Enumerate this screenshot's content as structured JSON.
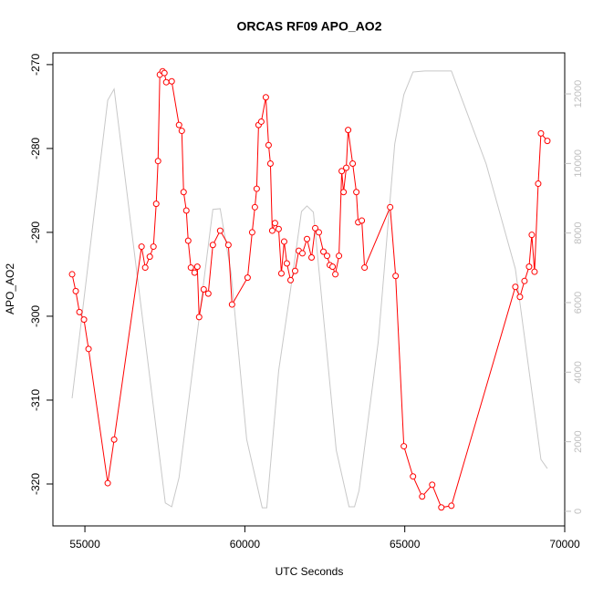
{
  "chart_data": {
    "type": "line",
    "title": "ORCAS RF09 APO_AO2",
    "x_label": "UTC Seconds",
    "y_label": "APO_AO2",
    "xlim": [
      54000,
      70000
    ],
    "xticks": [
      55000,
      60000,
      65000,
      70000
    ],
    "ylim": [
      -325,
      -268.6
    ],
    "yticks": [
      -270,
      -280,
      -290,
      -300,
      -310,
      -320
    ],
    "y2lim": [
      -420,
      13180
    ],
    "y2ticks": [
      0,
      2000,
      4000,
      6000,
      8000,
      10000,
      12000
    ],
    "y2_color": "#bebebe",
    "series": [
      {
        "color": "#ff0000",
        "markers": true,
        "x": [
          54600,
          54714,
          54829,
          54971,
          55114,
          55714,
          55914,
          56771,
          56886,
          57029,
          57143,
          57229,
          57286,
          57343,
          57429,
          57486,
          57543,
          57714,
          57943,
          58029,
          58086,
          58171,
          58229,
          58314,
          58429,
          58514,
          58571,
          58714,
          58857,
          59000,
          59229,
          59486,
          59600,
          60086,
          60229,
          60314,
          60371,
          60429,
          60514,
          60657,
          60743,
          60800,
          60857,
          60943,
          61057,
          61143,
          61229,
          61314,
          61429,
          61571,
          61686,
          61800,
          61943,
          62086,
          62200,
          62314,
          62457,
          62571,
          62657,
          62743,
          62829,
          62943,
          63029,
          63086,
          63171,
          63229,
          63371,
          63486,
          63543,
          63657,
          63743,
          64543,
          64714,
          64971,
          65257,
          65543,
          65857,
          66143,
          66457,
          68457,
          68600,
          68743,
          68886,
          68971,
          69057,
          69171,
          69257,
          69457
        ],
        "values": [
          -295.0,
          -297.0,
          -299.5,
          -300.4,
          -303.9,
          -319.9,
          -314.7,
          -291.7,
          -294.2,
          -292.9,
          -291.7,
          -286.6,
          -281.5,
          -271.2,
          -270.8,
          -271.0,
          -272.1,
          -272.0,
          -277.2,
          -277.9,
          -285.2,
          -287.4,
          -291.0,
          -294.2,
          -294.8,
          -294.1,
          -300.1,
          -296.8,
          -297.3,
          -291.5,
          -289.8,
          -291.5,
          -298.6,
          -295.4,
          -290.0,
          -287.0,
          -284.8,
          -277.2,
          -276.8,
          -273.9,
          -279.6,
          -281.8,
          -289.8,
          -288.9,
          -289.6,
          -294.9,
          -291.1,
          -293.7,
          -295.7,
          -294.6,
          -292.2,
          -292.5,
          -290.8,
          -293.0,
          -289.5,
          -290.0,
          -292.3,
          -292.8,
          -293.9,
          -294.1,
          -295.0,
          -292.8,
          -282.7,
          -285.2,
          -282.3,
          -277.8,
          -281.8,
          -285.2,
          -288.8,
          -288.6,
          -294.2,
          -287.0,
          -295.2,
          -315.5,
          -319.1,
          -321.5,
          -320.1,
          -322.8,
          -322.6,
          -296.5,
          -297.7,
          -295.8,
          -294.1,
          -290.3,
          -294.7,
          -284.2,
          -278.2,
          -279.1
        ]
      },
      {
        "color": "#c8c8c8",
        "axis": "y2",
        "markers": false,
        "x": [
          54600,
          55714,
          55914,
          57514,
          57714,
          57943,
          59000,
          59229,
          59571,
          60057,
          60543,
          60686,
          61057,
          61429,
          61771,
          61943,
          62143,
          62486,
          62857,
          63257,
          63429,
          63571,
          64171,
          64686,
          64971,
          65257,
          65629,
          66457,
          67543,
          68457,
          69257,
          69457
        ],
        "values": [
          3250,
          11820,
          12140,
          240,
          130,
          970,
          8680,
          8700,
          6840,
          2070,
          100,
          100,
          4040,
          6370,
          8620,
          8780,
          8600,
          5320,
          1760,
          130,
          130,
          600,
          4880,
          10560,
          11980,
          12630,
          12660,
          12660,
          9990,
          6970,
          1490,
          1230
        ]
      }
    ]
  }
}
